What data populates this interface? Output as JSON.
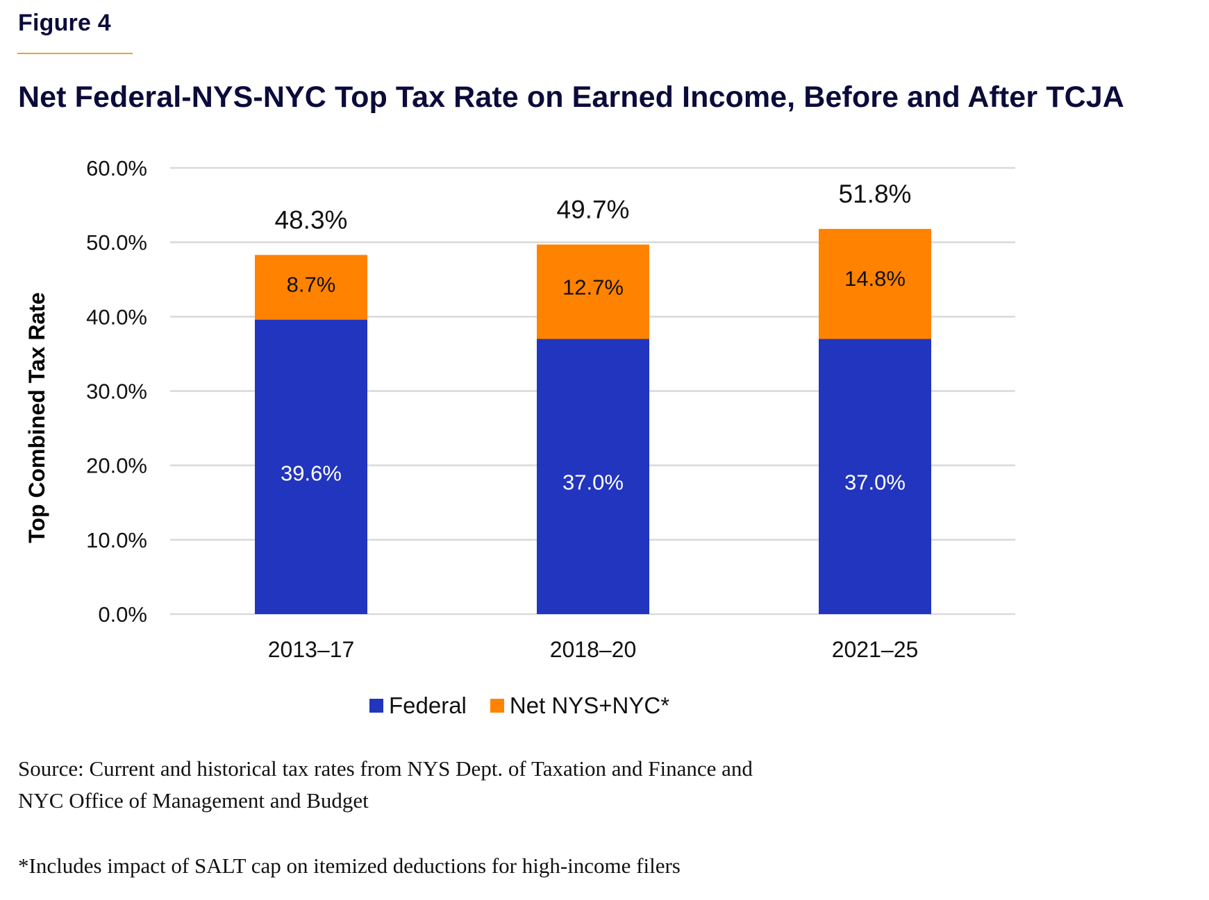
{
  "figure": {
    "label": "Figure 4",
    "rule_color": "#f0a030",
    "source": "Source: Current and historical tax rates from NYS Dept. of Taxation and Finance and NYC Office of Management and Budget",
    "footnote": "*Includes impact of SALT cap on itemized deductions for high-income filers"
  },
  "chart_data": {
    "type": "bar",
    "stacked": true,
    "title": "Net Federal-NYS-NYC Top Tax Rate on Earned Income, Before and After TCJA",
    "xlabel": "",
    "ylabel": "Top Combined Tax Rate",
    "ylim": [
      0,
      60
    ],
    "yticks": [
      0,
      10,
      20,
      30,
      40,
      50,
      60
    ],
    "ytick_labels": [
      "0.0%",
      "10.0%",
      "20.0%",
      "30.0%",
      "40.0%",
      "50.0%",
      "60.0%"
    ],
    "grid": true,
    "categories": [
      "2013–17",
      "2018–20",
      "2021–25"
    ],
    "series": [
      {
        "name": "Federal",
        "color": "#2235be",
        "label_color": "#ffffff",
        "values": [
          39.6,
          37.0,
          37.0
        ],
        "data_labels": [
          "39.6%",
          "37.0%",
          "37.0%"
        ]
      },
      {
        "name": "Net NYS+NYC*",
        "color": "#ff8200",
        "label_color": "#111111",
        "values": [
          8.7,
          12.7,
          14.8
        ],
        "data_labels": [
          "8.7%",
          "12.7%",
          "14.8%"
        ]
      }
    ],
    "totals": [
      48.3,
      49.7,
      51.8
    ],
    "total_labels": [
      "48.3%",
      "49.7%",
      "51.8%"
    ],
    "legend": {
      "position": "bottom-center",
      "entries": [
        "Federal",
        "Net NYS+NYC*"
      ]
    }
  }
}
